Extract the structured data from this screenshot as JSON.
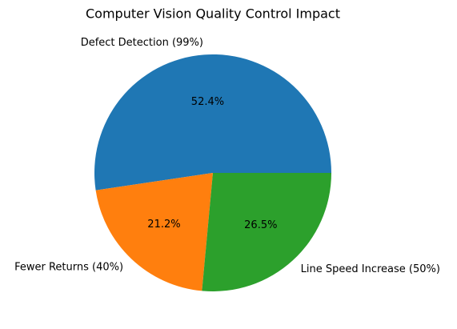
{
  "chart_data": {
    "type": "pie",
    "title": "Computer Vision Quality Control Impact",
    "categories": [
      "Defect Detection (99%)",
      "Fewer Returns (40%)",
      "Line Speed Increase (50%)"
    ],
    "values": [
      52.4,
      21.2,
      26.5
    ],
    "value_labels": [
      "52.4%",
      "21.2%",
      "26.5%"
    ],
    "colors": [
      "#1f77b4",
      "#ff7f0e",
      "#2ca02c"
    ]
  }
}
